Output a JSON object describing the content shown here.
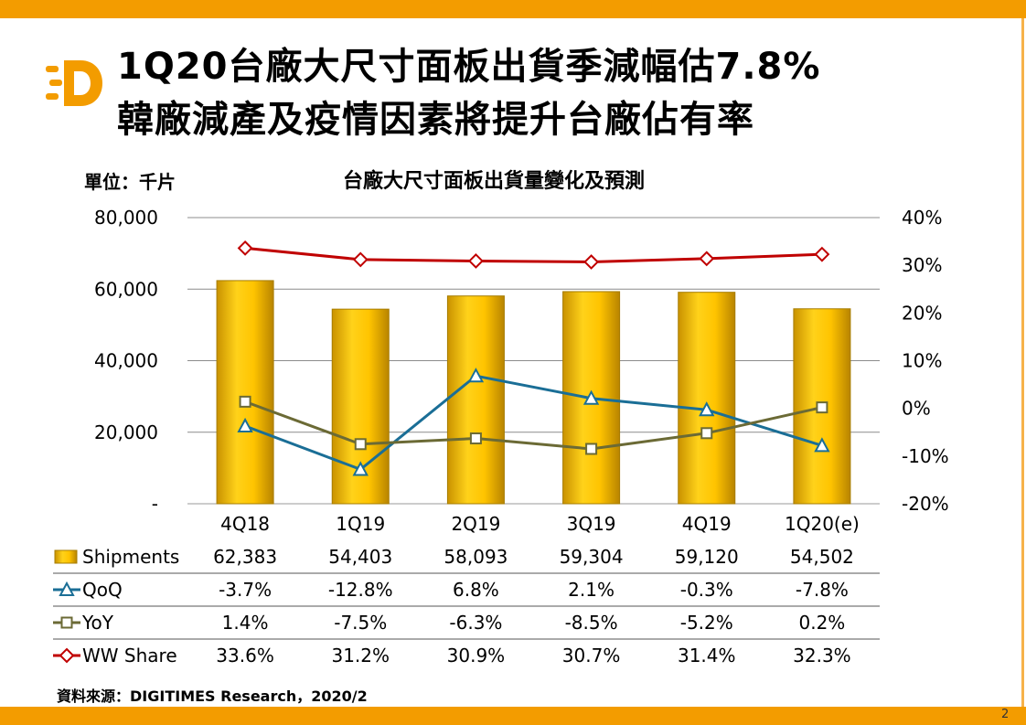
{
  "header": {
    "title_line1": "1Q20台廠大尺寸面板出貨季減幅估7.8%",
    "title_line2": "韓廠減產及疫情因素將提升台廠佔有率",
    "logo_letter": "D"
  },
  "unit_label": "單位：千片",
  "source": "資料來源：DIGITIMES Research，2020/2",
  "page_number": "2",
  "colors": {
    "bar": "#ffc000",
    "qoq": "#1a6e96",
    "yoy": "#6b6a35",
    "share": "#c00000",
    "accent": "#f39c00"
  },
  "chart_data": {
    "type": "bar",
    "title": "台廠大尺寸面板出貨量變化及預測",
    "categories": [
      "4Q18",
      "1Q19",
      "2Q19",
      "3Q19",
      "4Q19",
      "1Q20(e)"
    ],
    "left_axis": {
      "ylim": [
        0,
        80000
      ],
      "ticks": [
        "-",
        "20,000",
        "40,000",
        "60,000",
        "80,000"
      ],
      "tick_values": [
        0,
        20000,
        40000,
        60000,
        80000
      ]
    },
    "right_axis": {
      "ylim": [
        -20,
        40
      ],
      "ticks": [
        "-20%",
        "-10%",
        "0%",
        "10%",
        "20%",
        "30%",
        "40%"
      ],
      "tick_values": [
        -20,
        -10,
        0,
        10,
        20,
        30,
        40
      ]
    },
    "series": [
      {
        "name": "Shipments",
        "type": "bar",
        "axis": "left",
        "values": [
          62383,
          54403,
          58093,
          59304,
          59120,
          54502
        ],
        "labels": [
          "62,383",
          "54,403",
          "58,093",
          "59,304",
          "59,120",
          "54,502"
        ]
      },
      {
        "name": "QoQ",
        "type": "line",
        "marker": "triangle",
        "axis": "right",
        "values": [
          -3.7,
          -12.8,
          6.8,
          2.1,
          -0.3,
          -7.8
        ],
        "labels": [
          "-3.7%",
          "-12.8%",
          "6.8%",
          "2.1%",
          "-0.3%",
          "-7.8%"
        ]
      },
      {
        "name": "YoY",
        "type": "line",
        "marker": "square",
        "axis": "right",
        "values": [
          1.4,
          -7.5,
          -6.3,
          -8.5,
          -5.2,
          0.2
        ],
        "labels": [
          "1.4%",
          "-7.5%",
          "-6.3%",
          "-8.5%",
          "-5.2%",
          "0.2%"
        ]
      },
      {
        "name": "WW Share",
        "type": "line",
        "marker": "diamond",
        "axis": "right",
        "values": [
          33.6,
          31.2,
          30.9,
          30.7,
          31.4,
          32.3
        ],
        "labels": [
          "33.6%",
          "31.2%",
          "30.9%",
          "30.7%",
          "31.4%",
          "32.3%"
        ]
      }
    ]
  }
}
